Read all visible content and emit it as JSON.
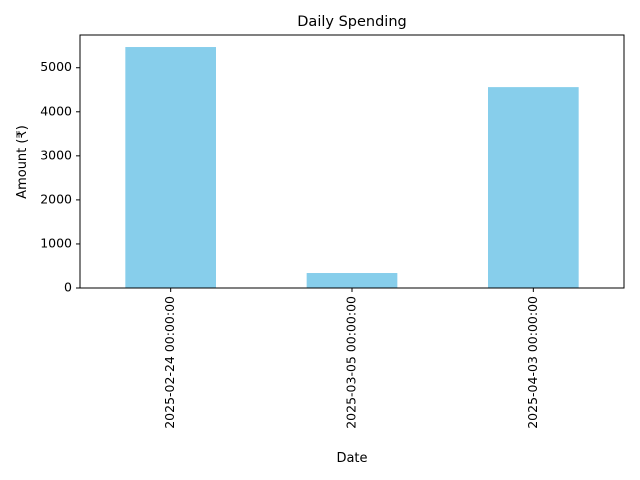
{
  "chart_data": {
    "type": "bar",
    "title": "Daily Spending",
    "xlabel": "Date",
    "ylabel": "Amount (₹)",
    "categories": [
      "2025-02-24 00:00:00",
      "2025-03-05 00:00:00",
      "2025-04-03 00:00:00"
    ],
    "values": [
      5470,
      340,
      4560
    ],
    "ylim": [
      0,
      5743
    ],
    "yticks": [
      0,
      1000,
      2000,
      3000,
      4000,
      5000
    ],
    "bar_color": "#87ceeb",
    "grid": false,
    "legend": "none"
  }
}
